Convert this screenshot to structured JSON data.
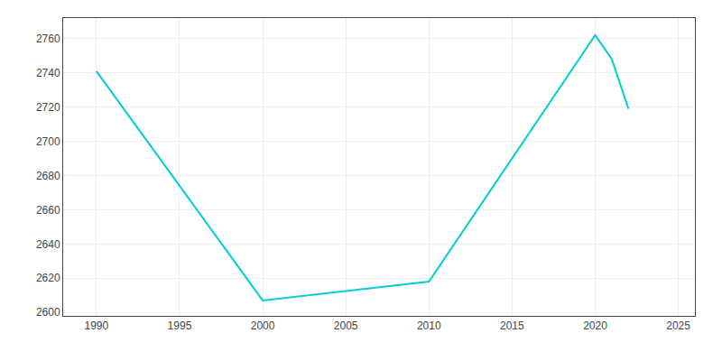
{
  "chart_data": {
    "type": "line",
    "x": [
      1990,
      2000,
      2010,
      2020,
      2021,
      2022
    ],
    "values": [
      2741,
      2607,
      2618,
      2762,
      2748,
      2719
    ],
    "color": "#00CED1",
    "xlim": [
      1988,
      2026
    ],
    "ylim": [
      2598,
      2772
    ],
    "xticks": [
      1990,
      1995,
      2000,
      2005,
      2010,
      2015,
      2020,
      2025
    ],
    "yticks": [
      2600,
      2620,
      2640,
      2660,
      2680,
      2700,
      2720,
      2740,
      2760
    ],
    "grid": true
  }
}
